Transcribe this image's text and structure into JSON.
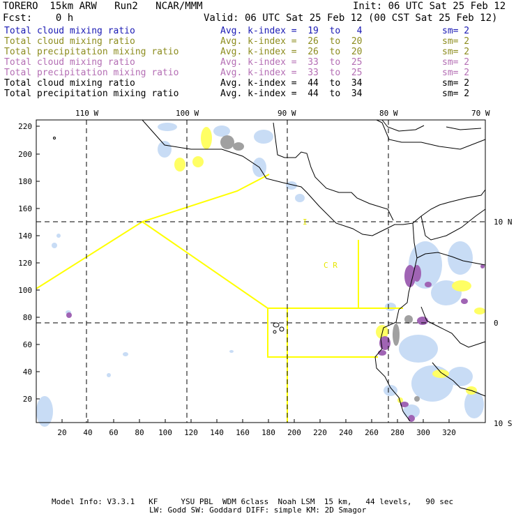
{
  "header": {
    "model": "TORERO  15km ARW   Run2   NCAR/MMM",
    "init": "Init: 06 UTC Sat 25 Feb 12",
    "fcst": "Fcst:    0 h",
    "valid": "Valid: 06 UTC Sat 25 Feb 12 (00 CST Sat 25 Feb 12)"
  },
  "legend": [
    {
      "field": "Total cloud mixing ratio",
      "stat": "Avg. k-index =  19  to   4",
      "sm": "sm= 2",
      "color": "#1a1ab4"
    },
    {
      "field": "Total cloud mixing ratio",
      "stat": "Avg. k-index =  26  to  20",
      "sm": "sm= 2",
      "color": "#8c8c1e"
    },
    {
      "field": "Total precipitation mixing ratio",
      "stat": "Avg. k-index =  26  to  20",
      "sm": "sm= 2",
      "color": "#8c8c1e"
    },
    {
      "field": "Total cloud mixing ratio",
      "stat": "Avg. k-index =  33  to  25",
      "sm": "sm= 2",
      "color": "#b46eb4"
    },
    {
      "field": "Total precipitation mixing ratio",
      "stat": "Avg. k-index =  33  to  25",
      "sm": "sm= 2",
      "color": "#b46eb4"
    },
    {
      "field": "Total cloud mixing ratio",
      "stat": "Avg. k-index =  44  to  34",
      "sm": "sm= 2",
      "color": "#000000"
    },
    {
      "field": "Total precipitation mixing ratio",
      "stat": "Avg. k-index =  44  to  34",
      "sm": "sm= 2",
      "color": "#000000"
    }
  ],
  "map": {
    "lon_labels": [
      "110 W",
      "100 W",
      "90 W",
      "80 W",
      "70 W"
    ],
    "lat_labels": [
      "10 N",
      "0",
      "10 S"
    ],
    "y_ticks": [
      "220",
      "200",
      "180",
      "160",
      "140",
      "120",
      "100",
      "80",
      "60",
      "40",
      "20"
    ],
    "x_ticks": [
      "20",
      "40",
      "60",
      "80",
      "100",
      "120",
      "140",
      "160",
      "180",
      "200",
      "220",
      "240",
      "260",
      "280",
      "300",
      "320"
    ],
    "region_label": "C  R",
    "region_tick": "I"
  },
  "footer": {
    "line1": "Model Info: V3.3.1   KF     YSU PBL  WDM 6class  Noah LSM  15 km,   44 levels,   90 sec",
    "line2": "LW: Godd SW: Goddard DIFF: simple KM: 2D Smagor"
  },
  "colors": {
    "cloud_light": "#c8dcf5",
    "precip_yellow": "#ffff64",
    "cloud_purple": "#a064b4",
    "cloud_gray": "#a0a0a0",
    "boundary_yellow": "#ffff00"
  }
}
